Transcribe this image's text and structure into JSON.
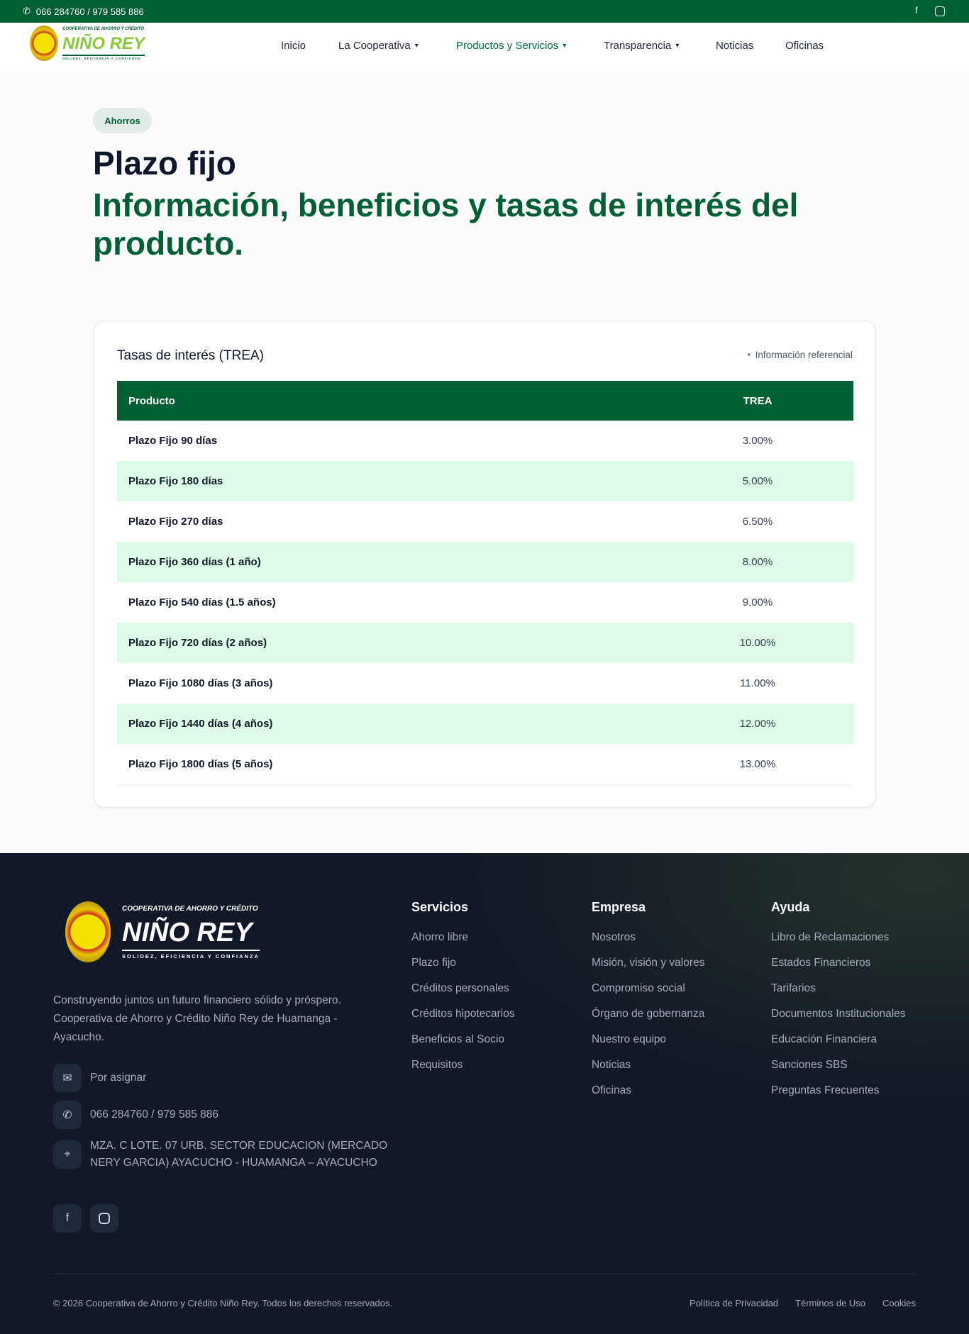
{
  "topbar": {
    "phone": "066 284760 / 979 585 886"
  },
  "logo": {
    "line1": "COOPERATIVA DE AHORRO Y CRÉDITO",
    "line2": "NIÑO REY",
    "line3": "SOLIDEZ, EFICIENCIA Y CONFIANZA"
  },
  "nav": [
    {
      "label": "Inicio"
    },
    {
      "label": "La Cooperativa"
    },
    {
      "label": "Productos y Servicios"
    },
    {
      "label": "Transparencia"
    },
    {
      "label": "Noticias"
    },
    {
      "label": "Oficinas"
    }
  ],
  "hero": {
    "badge": "Ahorros",
    "title": "Plazo fijo",
    "subtitle": "Información, beneficios y tasas de interés del producto."
  },
  "rates": {
    "title": "Tasas de interés (TREA)",
    "note": "Información referencial",
    "headers": [
      "Producto",
      "TREA"
    ],
    "rows": [
      [
        "Plazo Fijo 90 días",
        "3.00%"
      ],
      [
        "Plazo Fijo 180 días",
        "5.00%"
      ],
      [
        "Plazo Fijo 270 días",
        "6.50%"
      ],
      [
        "Plazo Fijo 360 días (1 año)",
        "8.00%"
      ],
      [
        "Plazo Fijo 540 días (1.5 años)",
        "9.00%"
      ],
      [
        "Plazo Fijo 720 días (2 años)",
        "10.00%"
      ],
      [
        "Plazo Fijo 1080 días (3 años)",
        "11.00%"
      ],
      [
        "Plazo Fijo 1440 días (4 años)",
        "12.00%"
      ],
      [
        "Plazo Fijo 1800 días (5 años)",
        "13.00%"
      ]
    ]
  },
  "footer": {
    "description": "Construyendo juntos un futuro financiero sólido y próspero. Cooperativa de Ahorro y Crédito Niño Rey de Huamanga - Ayacucho.",
    "email": "Por asignar",
    "phone": "066 284760 / 979 585 886",
    "address": "MZA. C LOTE. 07 URB. SECTOR EDUCACION (MERCADO NERY GARCIA) AYACUCHO - HUAMANGA – AYACUCHO",
    "columns": [
      {
        "title": "Servicios",
        "links": [
          "Ahorro libre",
          "Plazo fijo",
          "Créditos personales",
          "Créditos hipotecarios",
          "Beneficios al Socio",
          "Requisitos"
        ]
      },
      {
        "title": "Empresa",
        "links": [
          "Nosotros",
          "Misión, visión y valores",
          "Compromiso social",
          "Órgano de gobernanza",
          "Nuestro equipo",
          "Noticias",
          "Oficinas"
        ]
      },
      {
        "title": "Ayuda",
        "links": [
          "Libro de Reclamaciones",
          "Estados Financieros",
          "Tarifarios",
          "Documentos Institucionales",
          "Educación Financiera",
          "Sanciones SBS",
          "Preguntas Frecuentes"
        ]
      }
    ],
    "copyright": "© 2026 Cooperativa de Ahorro y Crédito Niño Rey. Todos los derechos reservados.",
    "legal": [
      "Política de Privacidad",
      "Términos de Uso",
      "Cookies"
    ]
  },
  "colors": {
    "brand": "#005f33",
    "accent": "#8cc63f",
    "row_alt": "#dcfce7",
    "footer_bg": "#111827"
  }
}
